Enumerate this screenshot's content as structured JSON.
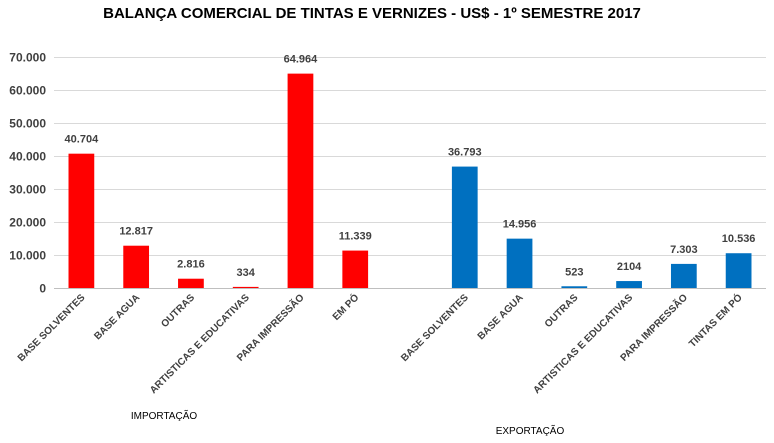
{
  "chart_data": {
    "type": "bar",
    "title": "BALANÇA COMERCIAL DE TINTAS E VERNIZES  - US$ - 1º SEMESTRE 2017",
    "ylim": [
      0,
      70000
    ],
    "yticks": [
      0,
      10000,
      20000,
      30000,
      40000,
      50000,
      60000,
      70000
    ],
    "ytick_labels": [
      "0",
      "10.000",
      "20.000",
      "30.000",
      "40.000",
      "50.000",
      "60.000",
      "70.000"
    ],
    "grid": true,
    "legend": "none",
    "groups": [
      {
        "name": "IMPORTAÇÃO",
        "color": "#ff0000",
        "categories": [
          "BASE SOLVENTES",
          "BASE AGUA",
          "OUTRAS",
          "ARTISTICAS E EDUCATIVAS",
          "PARA IMPRESSÃO",
          "EM PÓ"
        ],
        "values": [
          40704,
          12817,
          2816,
          334,
          64964,
          11339
        ],
        "labels": [
          "40.704",
          "12.817",
          "2.816",
          "334",
          "64.964",
          "11.339"
        ]
      },
      {
        "name": "EXPORTAÇÃO",
        "color": "#0070c0",
        "categories": [
          "BASE SOLVENTES",
          "BASE AGUA",
          "OUTRAS",
          "ARTISTICAS E EDUCATIVAS",
          "PARA IMPRESSÃO",
          "TINTAS EM PÓ"
        ],
        "values": [
          36793,
          14956,
          523,
          2104,
          7303,
          10536
        ],
        "labels": [
          "36.793",
          "14.956",
          "523",
          "2104",
          "7.303",
          "10.536"
        ]
      }
    ]
  }
}
